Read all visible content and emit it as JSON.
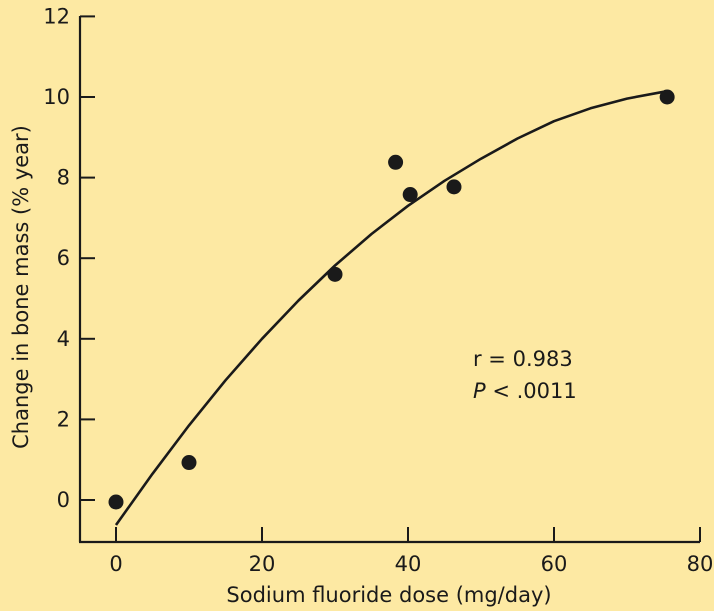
{
  "colors": {
    "background": "#fde9a3",
    "ink": "#1a1a1a"
  },
  "chart_data": {
    "type": "scatter",
    "title": "",
    "xlabel": "Sodium fluoride dose (mg/day)",
    "ylabel": "Change in bone mass (% year)",
    "xlim": [
      -8,
      80
    ],
    "ylim": [
      -0.9,
      12
    ],
    "xticks": [
      0,
      20,
      40,
      60,
      80
    ],
    "yticks": [
      0,
      2,
      4,
      6,
      8,
      10,
      12
    ],
    "grid": false,
    "legend": "none",
    "points": [
      {
        "x": 0,
        "y": -0.05
      },
      {
        "x": 10,
        "y": 0.93
      },
      {
        "x": 30,
        "y": 5.6
      },
      {
        "x": 38.3,
        "y": 8.38
      },
      {
        "x": 40.3,
        "y": 7.58
      },
      {
        "x": 46.3,
        "y": 7.77
      },
      {
        "x": 75.5,
        "y": 10.0
      }
    ],
    "fit_curve": {
      "x": [
        0,
        5,
        10,
        15,
        20,
        25,
        30,
        35,
        40,
        45,
        50,
        55,
        60,
        65,
        70,
        75
      ],
      "y": [
        -0.62,
        0.65,
        1.85,
        2.97,
        4.0,
        4.95,
        5.82,
        6.6,
        7.3,
        7.92,
        8.47,
        8.97,
        9.4,
        9.72,
        9.96,
        10.13
      ]
    },
    "annotations": {
      "r_text": "r = 0.983",
      "p_italic": "P",
      "p_text": " < .0011"
    }
  }
}
